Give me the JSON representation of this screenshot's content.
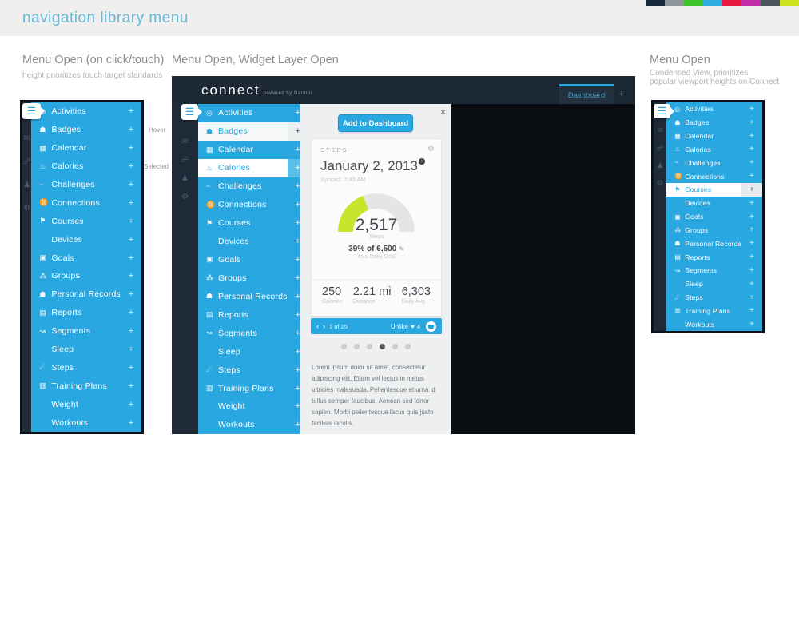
{
  "page": {
    "title": "navigation library menu"
  },
  "swatches": [
    "#16283c",
    "#8e979c",
    "#3dc426",
    "#2cacdf",
    "#e8173f",
    "#c32ba8",
    "#4a545b",
    "#cde31d"
  ],
  "sections": {
    "left": {
      "title": "Menu Open (on click/touch)",
      "subtitle": "height prioritizes touch target standards"
    },
    "middle": {
      "title": "Menu Open, Widget Layer Open"
    },
    "right": {
      "title": "Menu Open",
      "subtitle_line1": "Condensed View, prioritizes",
      "subtitle_line2": "popular viewport heights on Connect"
    }
  },
  "annotations": {
    "hover": "Hover",
    "selected": "Selected"
  },
  "palette": {
    "accent_blue": "#29a7e0",
    "header_navy": "#1c2834",
    "gauge_green": "#c9e42c",
    "gauge_gray": "#e5e5e3"
  },
  "rail": {
    "hamburger": "☰",
    "icons": [
      {
        "name": "messages-icon",
        "glyph": "✉"
      },
      {
        "name": "connections-icon",
        "glyph": "☍"
      },
      {
        "name": "profile-icon",
        "glyph": "♟"
      },
      {
        "name": "settings-icon",
        "glyph": "⚙"
      }
    ]
  },
  "menu": {
    "plus": "+",
    "items": [
      {
        "label": "Activities",
        "icon": "activities-icon",
        "glyph": "◎"
      },
      {
        "label": "Badges",
        "icon": "badges-icon",
        "glyph": "☗"
      },
      {
        "label": "Calendar",
        "icon": "calendar-icon",
        "glyph": "▦"
      },
      {
        "label": "Calories",
        "icon": "calories-icon",
        "glyph": "♨"
      },
      {
        "label": "Challenges",
        "icon": "challenges-icon",
        "glyph": "~"
      },
      {
        "label": "Connections",
        "icon": "connections-icon",
        "glyph": "♊"
      },
      {
        "label": "Courses",
        "icon": "courses-icon",
        "glyph": "⚑"
      },
      {
        "label": "Devices",
        "icon": "",
        "glyph": ""
      },
      {
        "label": "Goals",
        "icon": "goals-icon",
        "glyph": "▣"
      },
      {
        "label": "Groups",
        "icon": "groups-icon",
        "glyph": "⁂"
      },
      {
        "label": "Personal Records",
        "icon": "personal-records-icon",
        "glyph": "☗"
      },
      {
        "label": "Reports",
        "icon": "reports-icon",
        "glyph": "▤"
      },
      {
        "label": "Segments",
        "icon": "segments-icon",
        "glyph": "↝"
      },
      {
        "label": "Sleep",
        "icon": "",
        "glyph": ""
      },
      {
        "label": "Steps",
        "icon": "steps-icon",
        "glyph": "☄"
      },
      {
        "label": "Training Plans",
        "icon": "training-plans-icon",
        "glyph": "▥"
      },
      {
        "label": "Weight",
        "icon": "",
        "glyph": ""
      },
      {
        "label": "Workouts",
        "icon": "",
        "glyph": ""
      }
    ],
    "condensed_items": [
      {
        "label": "Activities",
        "icon": "activities-icon",
        "glyph": "◎"
      },
      {
        "label": "Badges",
        "icon": "badges-icon",
        "glyph": "☗"
      },
      {
        "label": "Calendar",
        "icon": "calendar-icon",
        "glyph": "▦"
      },
      {
        "label": "Calories",
        "icon": "calories-icon",
        "glyph": "♨"
      },
      {
        "label": "Challenges",
        "icon": "challenges-icon",
        "glyph": "~"
      },
      {
        "label": "Connections",
        "icon": "connections-icon",
        "glyph": "♊"
      },
      {
        "label": "Courses",
        "icon": "courses-icon",
        "glyph": "⚑"
      },
      {
        "label": "Devices",
        "icon": "",
        "glyph": ""
      },
      {
        "label": "Goals",
        "icon": "goals-icon",
        "glyph": "▣"
      },
      {
        "label": "Groups",
        "icon": "groups-icon",
        "glyph": "⁂"
      },
      {
        "label": "Personal Records",
        "icon": "personal-records-icon",
        "glyph": "☗"
      },
      {
        "label": "Reports",
        "icon": "reports-icon",
        "glyph": "▤"
      },
      {
        "label": "Segments",
        "icon": "segments-icon",
        "glyph": "↝"
      },
      {
        "label": "Sleep",
        "icon": "",
        "glyph": ""
      },
      {
        "label": "Steps",
        "icon": "steps-icon",
        "glyph": "☄"
      },
      {
        "label": "Training Plans",
        "icon": "training-plans-icon",
        "glyph": "▥"
      },
      {
        "label": "Workouts",
        "icon": "",
        "glyph": ""
      }
    ],
    "middle_states": {
      "hover": "Badges",
      "selected": "Calories"
    },
    "condensed_states": {
      "selected": "Courses"
    }
  },
  "header": {
    "logo": "connect",
    "powered": "powered by Garmin",
    "tab_dashboard": "Dashboard",
    "tab_new": "+"
  },
  "widget_layer": {
    "close": "×",
    "add_button": "Add to Dashboard",
    "card": {
      "category": "STEPS",
      "gear": "⚙",
      "date": "January 2, 2013",
      "info": "i",
      "synced": "Synced: 7:43 AM",
      "gauge": {
        "value": "2,517",
        "unit": "Steps",
        "percent": 39,
        "goal_text": "39% of 6,500",
        "edit": "✎",
        "goal_sub": "Your Daily Goal"
      },
      "stats": [
        {
          "value": "250",
          "label": "Calories"
        },
        {
          "value": "2.21 mi",
          "label": "Distance"
        },
        {
          "value": "6,303",
          "label": "Daily Avg"
        }
      ],
      "footer": {
        "prev": "‹",
        "next": "›",
        "pager": "1 of 25",
        "unlike": "Unlike",
        "heart": "♥",
        "likes": "4"
      }
    },
    "dots": {
      "count": 6,
      "active": 3
    },
    "description": "Lorem ipsum dolor sit amet, consectetur adipiscing elit. Etiam vel lectus in metus ultricies malesuada. Pellentesque et urna id tellus semper faucibus. Aenean sed tortor sapien. Morbi pellentesque lacus quis justo facilisis iaculis."
  }
}
